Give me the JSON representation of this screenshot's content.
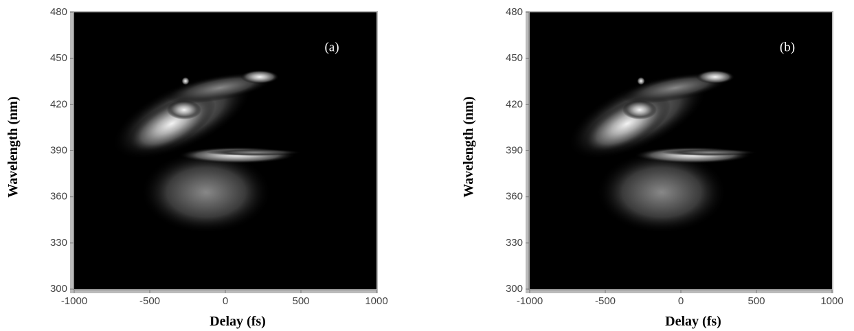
{
  "chart_data": [
    {
      "type": "heatmap",
      "panel_label": "(a)",
      "xlabel": "Delay (fs)",
      "ylabel": "Wavelength (nm)",
      "xlim": [
        -1000,
        1000
      ],
      "xticks": [
        -1000,
        -500,
        0,
        500,
        1000
      ],
      "ylim": [
        300,
        480
      ],
      "yticks": [
        300,
        330,
        360,
        390,
        420,
        450,
        480
      ]
    },
    {
      "type": "heatmap",
      "panel_label": "(b)",
      "xlabel": "Delay (fs)",
      "ylabel": "Wavelength (nm)",
      "xlim": [
        -1000,
        1000
      ],
      "xticks": [
        -1000,
        -500,
        0,
        500,
        1000
      ],
      "ylim": [
        300,
        480
      ],
      "yticks": [
        300,
        330,
        360,
        390,
        420,
        450,
        480
      ]
    }
  ]
}
